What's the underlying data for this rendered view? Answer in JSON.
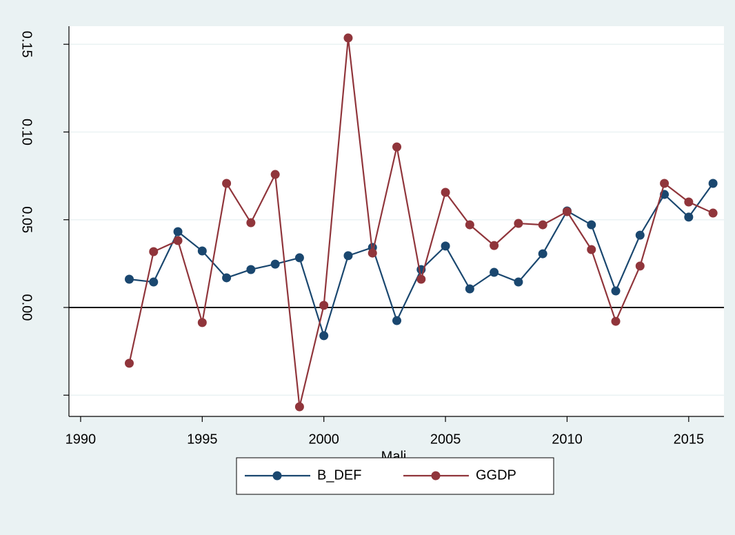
{
  "chart_data": {
    "type": "line",
    "x": [
      1992,
      1993,
      1994,
      1995,
      1996,
      1997,
      1998,
      1999,
      2000,
      2001,
      2002,
      2003,
      2004,
      2005,
      2006,
      2007,
      2008,
      2009,
      2010,
      2011,
      2012,
      2013,
      2014,
      2015,
      2016
    ],
    "x_label": "Mali",
    "series": [
      {
        "name": "B_DEF",
        "color": "#1a476f",
        "values": [
          0.0161,
          0.0145,
          0.0432,
          0.0322,
          0.0169,
          0.0216,
          0.0247,
          0.0283,
          -0.0161,
          0.0295,
          0.0342,
          -0.0075,
          0.0216,
          0.035,
          0.0106,
          0.02,
          0.0145,
          0.0306,
          0.055,
          0.0471,
          0.0094,
          0.0412,
          0.0644,
          0.0515,
          0.0707
        ]
      },
      {
        "name": "GGDP",
        "color": "#90353b",
        "values": [
          -0.0318,
          0.0318,
          0.0381,
          -0.0086,
          0.0707,
          0.0483,
          0.0758,
          -0.0566,
          0.0012,
          0.1536,
          0.031,
          0.0915,
          0.0161,
          0.0656,
          0.0471,
          0.0353,
          0.0479,
          0.0471,
          0.0546,
          0.033,
          -0.0079,
          0.0236,
          0.0707,
          0.0601,
          0.0538
        ]
      }
    ],
    "xlim": [
      1989.52,
      2016.45
    ],
    "xticks": [
      1990,
      1995,
      2000,
      2005,
      2010,
      2015
    ],
    "ylim": [
      -0.0621,
      0.1603
    ],
    "yticks": [
      {
        "value": -0.05,
        "label": null
      },
      {
        "value": 0,
        "label": "0.00"
      },
      0.05,
      {
        "value": 0.1,
        "label": "0.10"
      },
      0.15
    ],
    "zero_line": true,
    "grid": true,
    "legend": "bottom"
  }
}
